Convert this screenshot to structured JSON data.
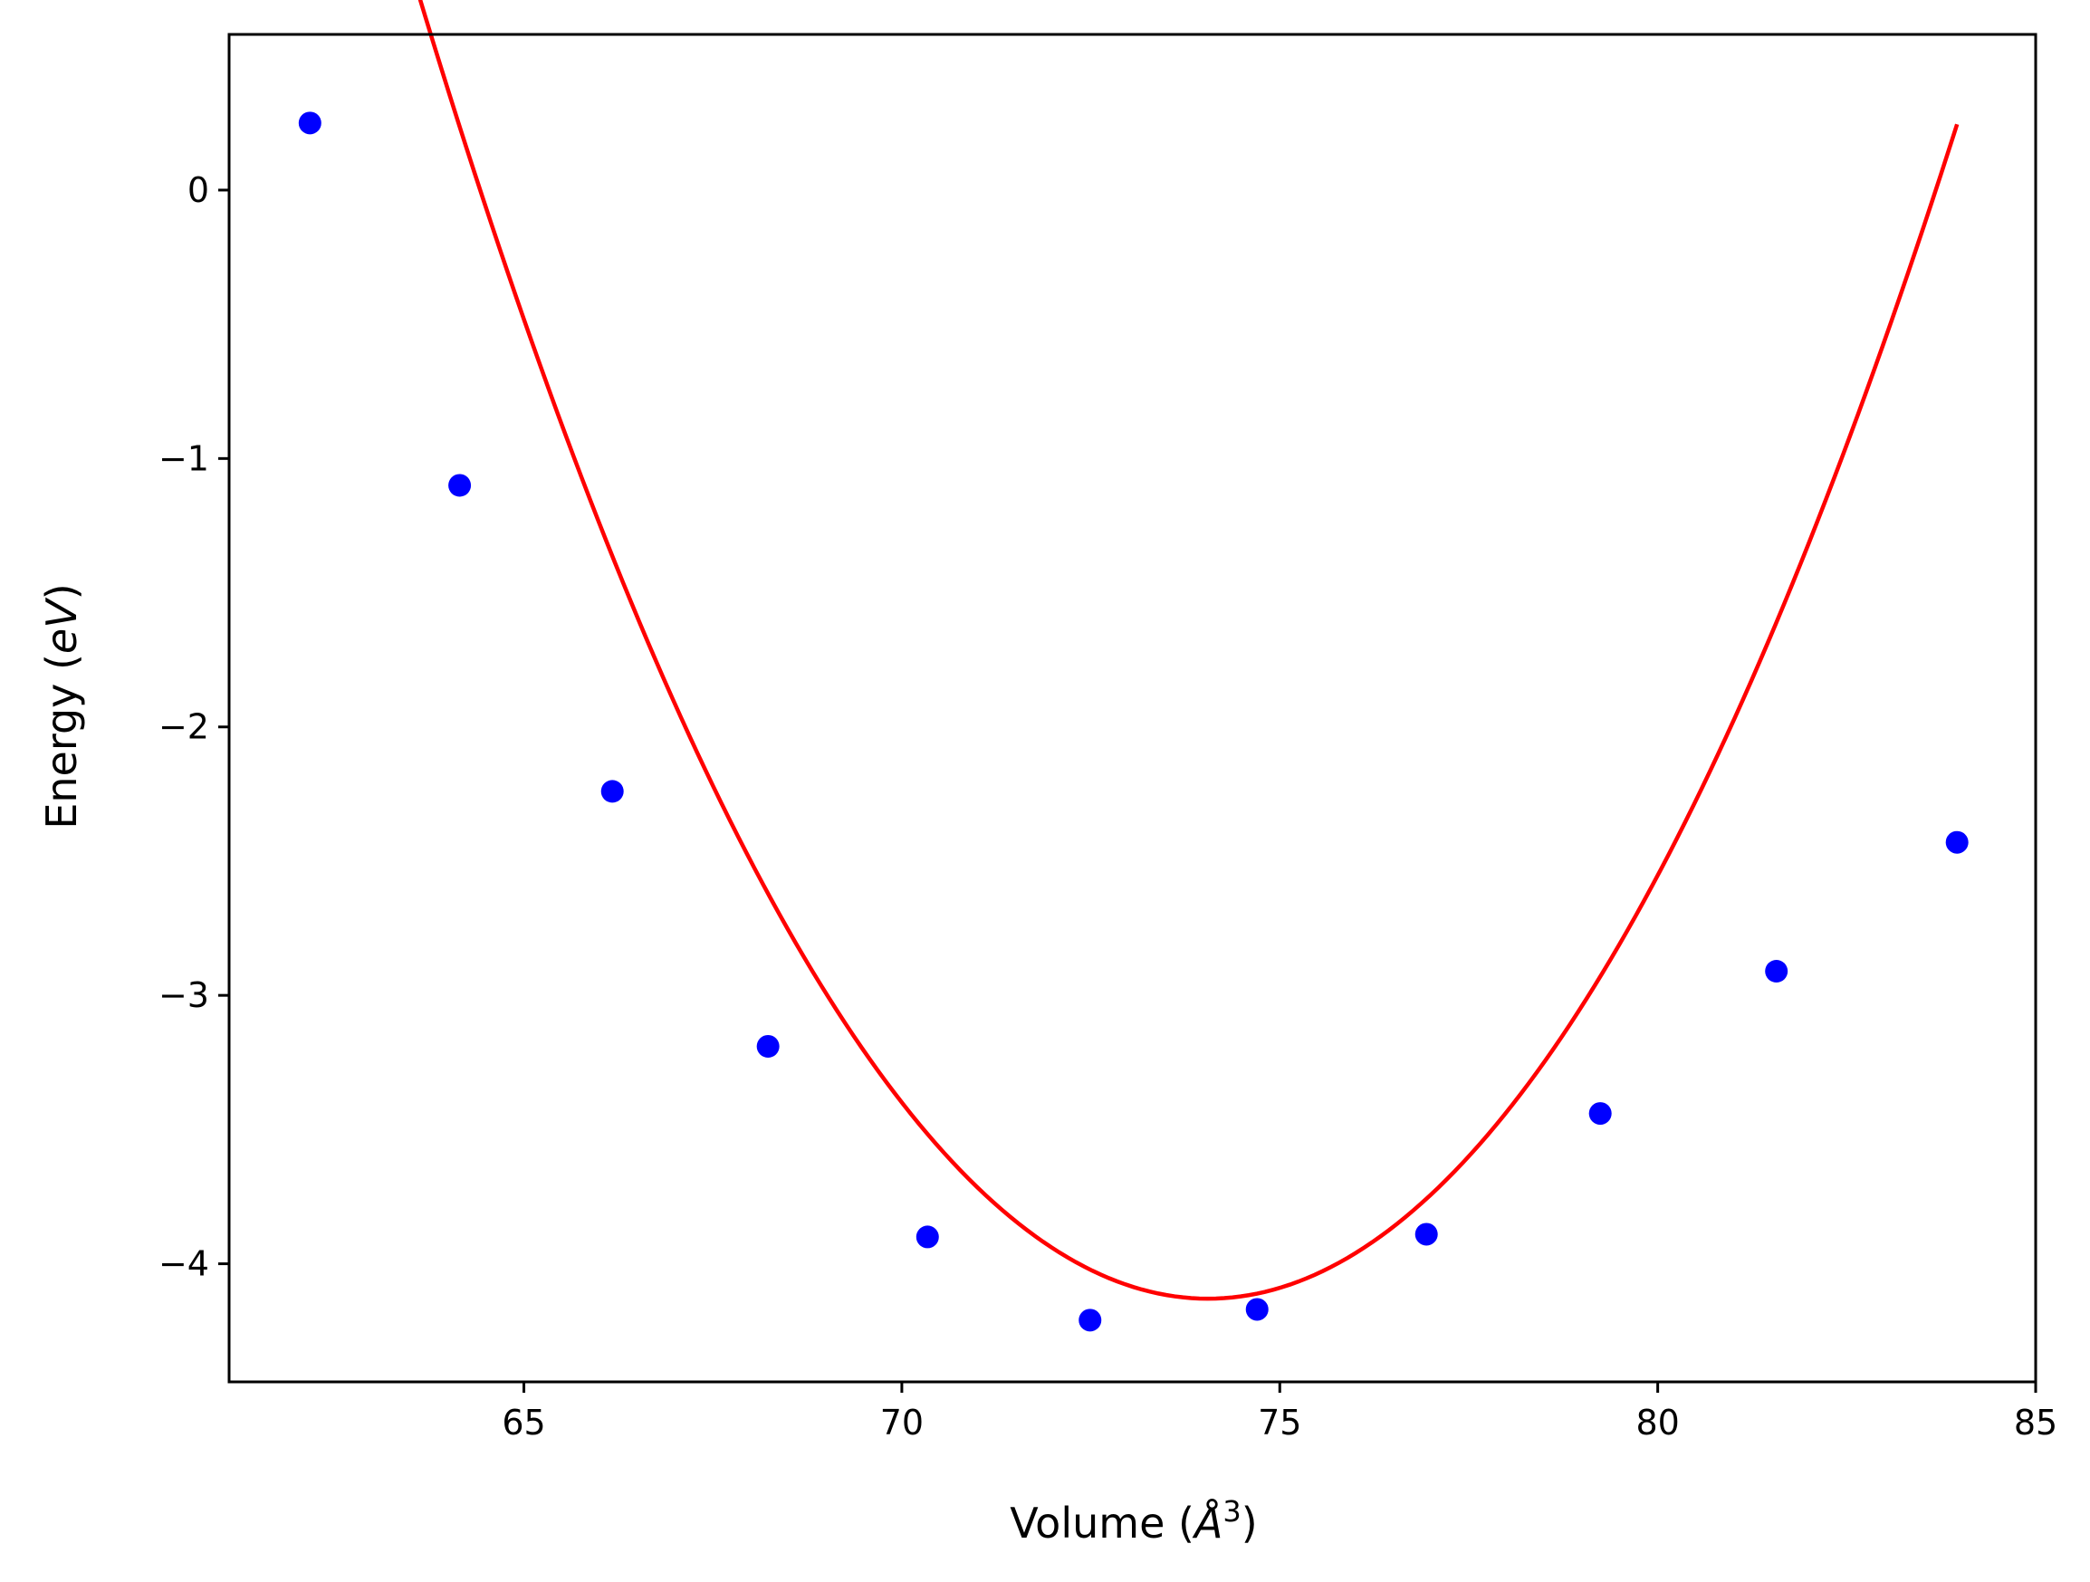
{
  "chart_data": {
    "type": "scatter",
    "title": "",
    "xlabel": "Volume (Å³)",
    "ylabel": "Energy (eV)",
    "xlabel_parts": {
      "prefix": "Volume (",
      "var": "Å",
      "sup": "3",
      "suffix": ")"
    },
    "ylabel_parts": {
      "prefix": "Energy (",
      "var": "eV",
      "suffix": ")"
    },
    "xlim": [
      61.1,
      85.0
    ],
    "ylim": [
      -4.44,
      0.58
    ],
    "xticks": [
      65,
      70,
      75,
      80,
      85
    ],
    "xtick_labels": [
      "65",
      "70",
      "75",
      "80",
      "85"
    ],
    "yticks": [
      0,
      -1,
      -2,
      -3,
      -4
    ],
    "ytick_labels": [
      "0",
      "−1",
      "−2",
      "−3",
      "−4"
    ],
    "grid": false,
    "series": [
      {
        "type": "scatter",
        "color": "#0000ff",
        "x": [
          62.17,
          64.15,
          66.17,
          68.23,
          70.34,
          72.49,
          74.7,
          76.94,
          79.24,
          81.57,
          83.96
        ],
        "y": [
          0.25,
          -1.1,
          -2.24,
          -3.19,
          -3.9,
          -4.21,
          -4.17,
          -3.89,
          -3.44,
          -2.91,
          -2.43
        ]
      },
      {
        "type": "line",
        "color": "#ff0000",
        "fit": {
          "a": 0.04455,
          "x0": 74.05,
          "y0": -4.13
        },
        "x_range": [
          62.17,
          83.96
        ]
      }
    ]
  }
}
